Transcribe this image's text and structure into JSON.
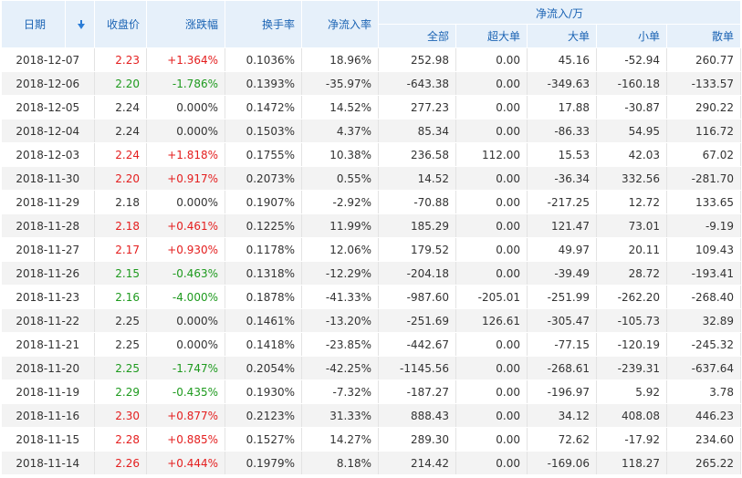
{
  "headers": {
    "date": "日期",
    "close": "收盘价",
    "change": "涨跌幅",
    "turnover": "换手率",
    "net_inflow_rate": "净流入率",
    "net_inflow_group": "净流入/万",
    "all": "全部",
    "xl": "超大单",
    "large": "大单",
    "small": "小单",
    "retail": "散单"
  },
  "sort_icon": "sort-down-arrow-icon",
  "colors": {
    "up": "#e41e1e",
    "down": "#1e9a1e",
    "header_text": "#1c64b4",
    "header_bg": "#e6f0fa"
  },
  "rows": [
    {
      "date": "2018-12-07",
      "close": "2.23",
      "change": "+1.364%",
      "turnover": "0.1036%",
      "rate": "18.96%",
      "all": "252.98",
      "xl": "0.00",
      "large": "45.16",
      "small": "-52.94",
      "retail": "260.77",
      "dir": "up"
    },
    {
      "date": "2018-12-06",
      "close": "2.20",
      "change": "-1.786%",
      "turnover": "0.1393%",
      "rate": "-35.97%",
      "all": "-643.38",
      "xl": "0.00",
      "large": "-349.63",
      "small": "-160.18",
      "retail": "-133.57",
      "dir": "down"
    },
    {
      "date": "2018-12-05",
      "close": "2.24",
      "change": "0.000%",
      "turnover": "0.1472%",
      "rate": "14.52%",
      "all": "277.23",
      "xl": "0.00",
      "large": "17.88",
      "small": "-30.87",
      "retail": "290.22",
      "dir": "flat"
    },
    {
      "date": "2018-12-04",
      "close": "2.24",
      "change": "0.000%",
      "turnover": "0.1503%",
      "rate": "4.37%",
      "all": "85.34",
      "xl": "0.00",
      "large": "-86.33",
      "small": "54.95",
      "retail": "116.72",
      "dir": "flat"
    },
    {
      "date": "2018-12-03",
      "close": "2.24",
      "change": "+1.818%",
      "turnover": "0.1755%",
      "rate": "10.38%",
      "all": "236.58",
      "xl": "112.00",
      "large": "15.53",
      "small": "42.03",
      "retail": "67.02",
      "dir": "up"
    },
    {
      "date": "2018-11-30",
      "close": "2.20",
      "change": "+0.917%",
      "turnover": "0.2073%",
      "rate": "0.55%",
      "all": "14.52",
      "xl": "0.00",
      "large": "-36.34",
      "small": "332.56",
      "retail": "-281.70",
      "dir": "up"
    },
    {
      "date": "2018-11-29",
      "close": "2.18",
      "change": "0.000%",
      "turnover": "0.1907%",
      "rate": "-2.92%",
      "all": "-70.88",
      "xl": "0.00",
      "large": "-217.25",
      "small": "12.72",
      "retail": "133.65",
      "dir": "flat"
    },
    {
      "date": "2018-11-28",
      "close": "2.18",
      "change": "+0.461%",
      "turnover": "0.1225%",
      "rate": "11.99%",
      "all": "185.29",
      "xl": "0.00",
      "large": "121.47",
      "small": "73.01",
      "retail": "-9.19",
      "dir": "up"
    },
    {
      "date": "2018-11-27",
      "close": "2.17",
      "change": "+0.930%",
      "turnover": "0.1178%",
      "rate": "12.06%",
      "all": "179.52",
      "xl": "0.00",
      "large": "49.97",
      "small": "20.11",
      "retail": "109.43",
      "dir": "up"
    },
    {
      "date": "2018-11-26",
      "close": "2.15",
      "change": "-0.463%",
      "turnover": "0.1318%",
      "rate": "-12.29%",
      "all": "-204.18",
      "xl": "0.00",
      "large": "-39.49",
      "small": "28.72",
      "retail": "-193.41",
      "dir": "down"
    },
    {
      "date": "2018-11-23",
      "close": "2.16",
      "change": "-4.000%",
      "turnover": "0.1878%",
      "rate": "-41.33%",
      "all": "-987.60",
      "xl": "-205.01",
      "large": "-251.99",
      "small": "-262.20",
      "retail": "-268.40",
      "dir": "down"
    },
    {
      "date": "2018-11-22",
      "close": "2.25",
      "change": "0.000%",
      "turnover": "0.1461%",
      "rate": "-13.20%",
      "all": "-251.69",
      "xl": "126.61",
      "large": "-305.47",
      "small": "-105.73",
      "retail": "32.89",
      "dir": "flat"
    },
    {
      "date": "2018-11-21",
      "close": "2.25",
      "change": "0.000%",
      "turnover": "0.1418%",
      "rate": "-23.85%",
      "all": "-442.67",
      "xl": "0.00",
      "large": "-77.15",
      "small": "-120.19",
      "retail": "-245.32",
      "dir": "flat"
    },
    {
      "date": "2018-11-20",
      "close": "2.25",
      "change": "-1.747%",
      "turnover": "0.2054%",
      "rate": "-42.25%",
      "all": "-1145.56",
      "xl": "0.00",
      "large": "-268.61",
      "small": "-239.31",
      "retail": "-637.64",
      "dir": "down"
    },
    {
      "date": "2018-11-19",
      "close": "2.29",
      "change": "-0.435%",
      "turnover": "0.1930%",
      "rate": "-7.32%",
      "all": "-187.27",
      "xl": "0.00",
      "large": "-196.97",
      "small": "5.92",
      "retail": "3.78",
      "dir": "down"
    },
    {
      "date": "2018-11-16",
      "close": "2.30",
      "change": "+0.877%",
      "turnover": "0.2123%",
      "rate": "31.33%",
      "all": "888.43",
      "xl": "0.00",
      "large": "34.12",
      "small": "408.08",
      "retail": "446.23",
      "dir": "up"
    },
    {
      "date": "2018-11-15",
      "close": "2.28",
      "change": "+0.885%",
      "turnover": "0.1527%",
      "rate": "14.27%",
      "all": "289.30",
      "xl": "0.00",
      "large": "72.62",
      "small": "-17.92",
      "retail": "234.60",
      "dir": "up"
    },
    {
      "date": "2018-11-14",
      "close": "2.26",
      "change": "+0.444%",
      "turnover": "0.1979%",
      "rate": "8.18%",
      "all": "214.42",
      "xl": "0.00",
      "large": "-169.06",
      "small": "118.27",
      "retail": "265.22",
      "dir": "up"
    }
  ]
}
